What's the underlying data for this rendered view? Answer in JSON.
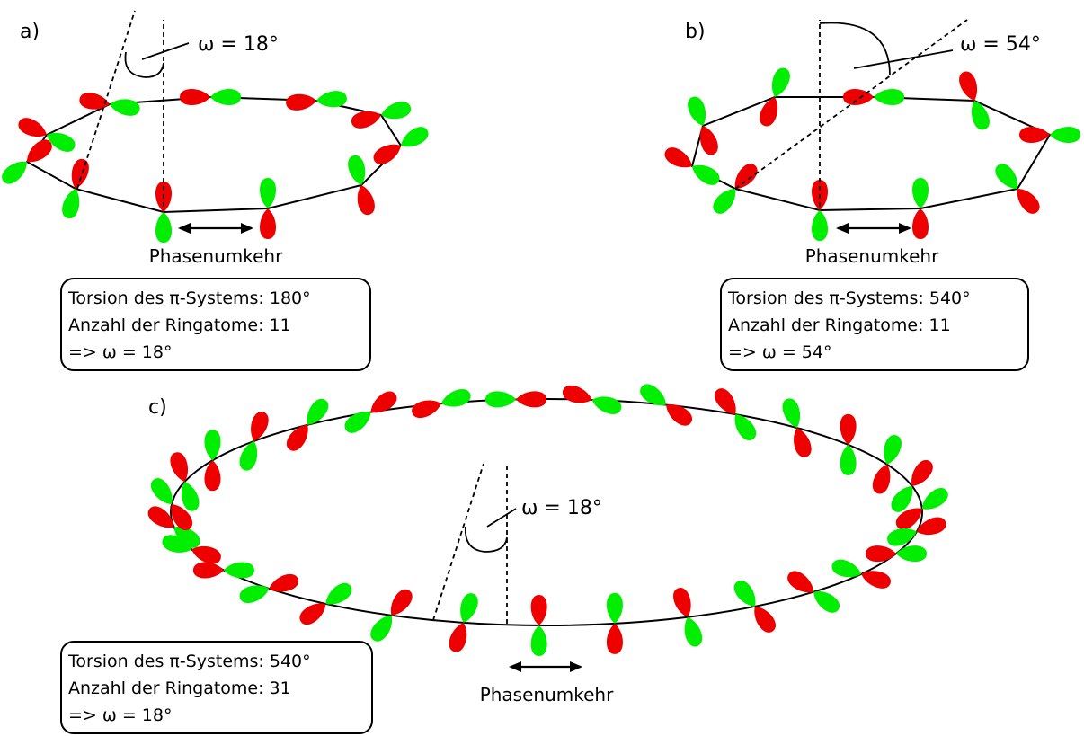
{
  "colors": {
    "phase_positive": "#00ee00",
    "phase_negative": "#ee0000",
    "line": "#000000"
  },
  "panels": {
    "a": {
      "label": "a)",
      "omega_label": "ω = 18°",
      "phase_label": "Phasenumkehr",
      "info": {
        "line1": "Torsion des π-Systems: 180°",
        "line2": "Anzahl der Ringatome: 11",
        "line3": "=> ω = 18°"
      }
    },
    "b": {
      "label": "b)",
      "omega_label": "ω = 54°",
      "phase_label": "Phasenumkehr",
      "info": {
        "line1": "Torsion des π-Systems: 540°",
        "line2": "Anzahl der Ringatome: 11",
        "line3": "=> ω = 54°"
      }
    },
    "c": {
      "label": "c)",
      "omega_label": "ω = 18°",
      "phase_label": "Phasenumkehr",
      "info": {
        "line1": "Torsion des π-Systems: 540°",
        "line2": "Anzahl der Ringatome: 31",
        "line3": "=> ω = 18°"
      }
    }
  }
}
